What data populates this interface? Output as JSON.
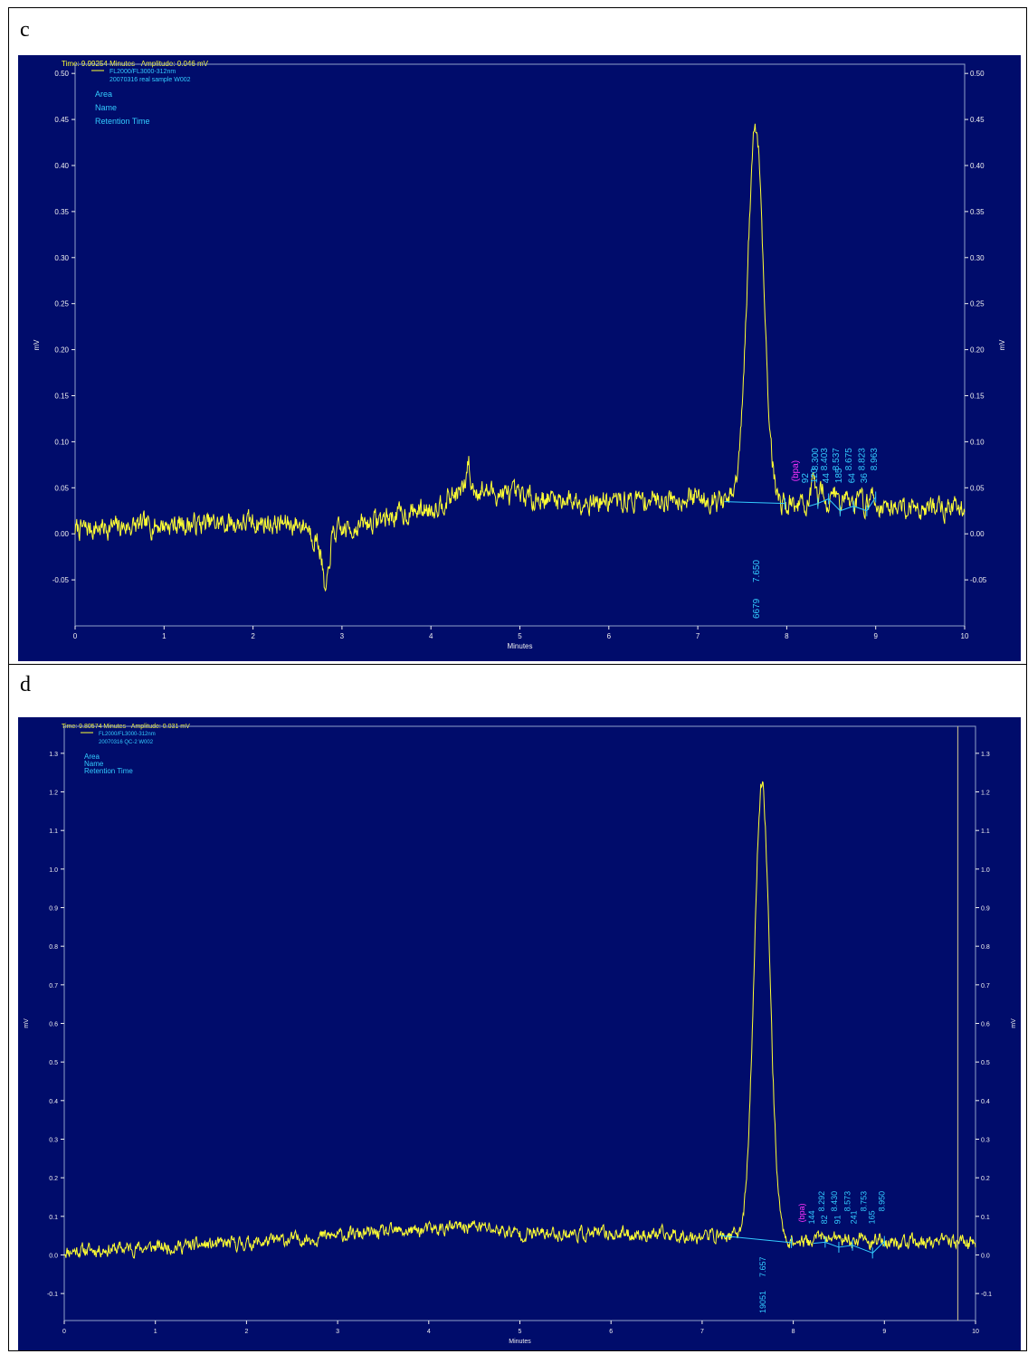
{
  "panels": [
    {
      "letter": "c",
      "status": "Time:  9.99254 Minutes - Amplitude:  0.046 mV"
    },
    {
      "letter": "d",
      "status": "Time:  9.80574 Minutes - Amplitude:  0.031 mV"
    }
  ],
  "colors": {
    "background": "#000c6b",
    "trace": "#ffff33",
    "axis_text": "#f0f0f0",
    "label_text": "#33ccff",
    "peak_name": "#ff33ff",
    "baseline": "#33ccff",
    "status_text": "#ffff33"
  },
  "chart_data": [
    {
      "type": "line",
      "title": "",
      "xlabel": "Minutes",
      "ylabel": "mV",
      "xlim": [
        0,
        10
      ],
      "ylim": [
        -0.1,
        0.51
      ],
      "x_ticks": [
        "0",
        "1",
        "2",
        "3",
        "4",
        "5",
        "6",
        "7",
        "8",
        "9",
        "10"
      ],
      "x_tick_values": [
        0,
        1,
        2,
        3,
        4,
        5,
        6,
        7,
        8,
        9,
        10
      ],
      "y_ticks": [
        "-0.05",
        "0.00",
        "0.05",
        "0.10",
        "0.15",
        "0.20",
        "0.25",
        "0.30",
        "0.35",
        "0.40",
        "0.45",
        "0.50"
      ],
      "y_tick_values": [
        -0.05,
        0.0,
        0.05,
        0.1,
        0.15,
        0.2,
        0.25,
        0.3,
        0.35,
        0.4,
        0.45,
        0.5
      ],
      "legend": {
        "series_name": "FL2000/FL3000-312nm",
        "sample": "20070316 real sample W002",
        "label_keys": [
          "Area",
          "Name",
          "Retention Time"
        ]
      },
      "series": [
        {
          "name": "FL2000/FL3000-312nm",
          "baseline_profile": [
            [
              0,
              0.005
            ],
            [
              1,
              0.01
            ],
            [
              2,
              0.012
            ],
            [
              2.6,
              0.01
            ],
            [
              2.8,
              -0.02
            ],
            [
              2.9,
              0.0
            ],
            [
              3.5,
              0.018
            ],
            [
              4.0,
              0.028
            ],
            [
              4.4,
              0.05
            ],
            [
              5.0,
              0.04
            ],
            [
              6.0,
              0.035
            ],
            [
              7.0,
              0.04
            ],
            [
              7.3,
              0.035
            ],
            [
              8.0,
              0.033
            ],
            [
              9.0,
              0.03
            ],
            [
              10.0,
              0.028
            ]
          ],
          "noise_amplitude": 0.012,
          "dips": [
            {
              "x": 2.82,
              "depth": 0.05
            }
          ],
          "spikes": [
            {
              "x": 4.42,
              "height": 0.03
            }
          ],
          "peaks": [
            {
              "x": 7.65,
              "height": 0.41,
              "width": 0.09
            }
          ],
          "small_peaks": [
            {
              "x": 8.3,
              "height": 0.018
            },
            {
              "x": 8.403,
              "height": 0.02
            },
            {
              "x": 8.537,
              "height": 0.015
            },
            {
              "x": 8.675,
              "height": 0.02
            },
            {
              "x": 8.823,
              "height": 0.015
            },
            {
              "x": 8.963,
              "height": 0.015
            }
          ],
          "seed": 7
        }
      ],
      "baselines": [
        {
          "x0": 7.3,
          "y0": 0.035,
          "x1": 7.98,
          "y1": 0.033
        },
        {
          "x0": 8.25,
          "y0": 0.03,
          "x1": 8.35,
          "y1": 0.033
        },
        {
          "x0": 8.35,
          "y0": 0.033,
          "x1": 8.47,
          "y1": 0.038
        },
        {
          "x0": 8.47,
          "y0": 0.038,
          "x1": 8.6,
          "y1": 0.025
        },
        {
          "x0": 8.6,
          "y0": 0.025,
          "x1": 8.75,
          "y1": 0.03
        },
        {
          "x0": 8.75,
          "y0": 0.03,
          "x1": 8.9,
          "y1": 0.025
        },
        {
          "x0": 8.9,
          "y0": 0.025,
          "x1": 9.0,
          "y1": 0.04
        }
      ],
      "peak_labels": [
        {
          "rt": "7.650",
          "area": "6679",
          "name": "",
          "x": 7.65,
          "position": "below"
        },
        {
          "rt": "8.300",
          "area": "92",
          "name": "(bpa)",
          "x": 8.3,
          "position": "above"
        },
        {
          "rt": "8.403",
          "area": "120",
          "name": "",
          "x": 8.403,
          "position": "above"
        },
        {
          "rt": "8.537",
          "area": "44",
          "name": "",
          "x": 8.537,
          "position": "above"
        },
        {
          "rt": "8.675",
          "area": "185",
          "name": "",
          "x": 8.675,
          "position": "above"
        },
        {
          "rt": "8.823",
          "area": "64",
          "name": "",
          "x": 8.823,
          "position": "above"
        },
        {
          "rt": "8.963",
          "area": "36",
          "name": "",
          "x": 8.963,
          "position": "above"
        }
      ],
      "cursor_x": null
    },
    {
      "type": "line",
      "title": "",
      "xlabel": "Minutes",
      "ylabel": "mV",
      "xlim": [
        0,
        10
      ],
      "ylim": [
        -0.17,
        1.37
      ],
      "x_ticks": [
        "0",
        "1",
        "2",
        "3",
        "4",
        "5",
        "6",
        "7",
        "8",
        "9",
        "10"
      ],
      "x_tick_values": [
        0,
        1,
        2,
        3,
        4,
        5,
        6,
        7,
        8,
        9,
        10
      ],
      "y_ticks": [
        "-0.1",
        "0.0",
        "0.1",
        "0.2",
        "0.3",
        "0.4",
        "0.5",
        "0.6",
        "0.7",
        "0.8",
        "0.9",
        "1.0",
        "1.1",
        "1.2",
        "1.3"
      ],
      "y_tick_values": [
        -0.1,
        0.0,
        0.1,
        0.2,
        0.3,
        0.4,
        0.5,
        0.6,
        0.7,
        0.8,
        0.9,
        1.0,
        1.1,
        1.2,
        1.3
      ],
      "legend": {
        "series_name": "FL2000/FL3000-312nm",
        "sample": "20070316 QC-2 W002",
        "label_keys": [
          "Area",
          "Name",
          "Retention Time"
        ]
      },
      "series": [
        {
          "name": "FL2000/FL3000-312nm",
          "baseline_profile": [
            [
              0,
              0.01
            ],
            [
              1,
              0.02
            ],
            [
              2,
              0.03
            ],
            [
              3,
              0.05
            ],
            [
              4,
              0.065
            ],
            [
              4.5,
              0.075
            ],
            [
              5.0,
              0.055
            ],
            [
              6.0,
              0.055
            ],
            [
              7.0,
              0.05
            ],
            [
              7.2,
              0.05
            ],
            [
              8.0,
              0.035
            ],
            [
              9.0,
              0.03
            ],
            [
              10.0,
              0.035
            ]
          ],
          "noise_amplitude": 0.018,
          "dips": [],
          "spikes": [],
          "peaks": [
            {
              "x": 7.657,
              "height": 1.18,
              "width": 0.085
            }
          ],
          "small_peaks": [
            {
              "x": 8.292,
              "height": 0.025
            },
            {
              "x": 8.43,
              "height": 0.02
            },
            {
              "x": 8.573,
              "height": 0.02
            },
            {
              "x": 8.753,
              "height": 0.03
            },
            {
              "x": 8.95,
              "height": 0.02
            }
          ],
          "seed": 11
        }
      ],
      "baselines": [
        {
          "x0": 7.2,
          "y0": 0.05,
          "x1": 7.98,
          "y1": 0.032
        },
        {
          "x0": 8.22,
          "y0": 0.03,
          "x1": 8.35,
          "y1": 0.033
        },
        {
          "x0": 8.35,
          "y0": 0.033,
          "x1": 8.5,
          "y1": 0.02
        },
        {
          "x0": 8.5,
          "y0": 0.02,
          "x1": 8.65,
          "y1": 0.025
        },
        {
          "x0": 8.65,
          "y0": 0.025,
          "x1": 8.87,
          "y1": 0.005
        },
        {
          "x0": 8.87,
          "y0": 0.005,
          "x1": 9.0,
          "y1": 0.035
        }
      ],
      "peak_labels": [
        {
          "rt": "7.657",
          "area": "19051",
          "name": "",
          "x": 7.657,
          "position": "below"
        },
        {
          "rt": "8.292",
          "area": "144",
          "name": "(bpa)",
          "x": 8.292,
          "position": "above"
        },
        {
          "rt": "8.430",
          "area": "82",
          "name": "",
          "x": 8.43,
          "position": "above"
        },
        {
          "rt": "8.573",
          "area": "91",
          "name": "",
          "x": 8.573,
          "position": "above"
        },
        {
          "rt": "8.753",
          "area": "241",
          "name": "",
          "x": 8.753,
          "position": "above"
        },
        {
          "rt": "8.950",
          "area": "165",
          "name": "",
          "x": 8.95,
          "position": "above"
        }
      ],
      "cursor_x": 9.806
    }
  ]
}
